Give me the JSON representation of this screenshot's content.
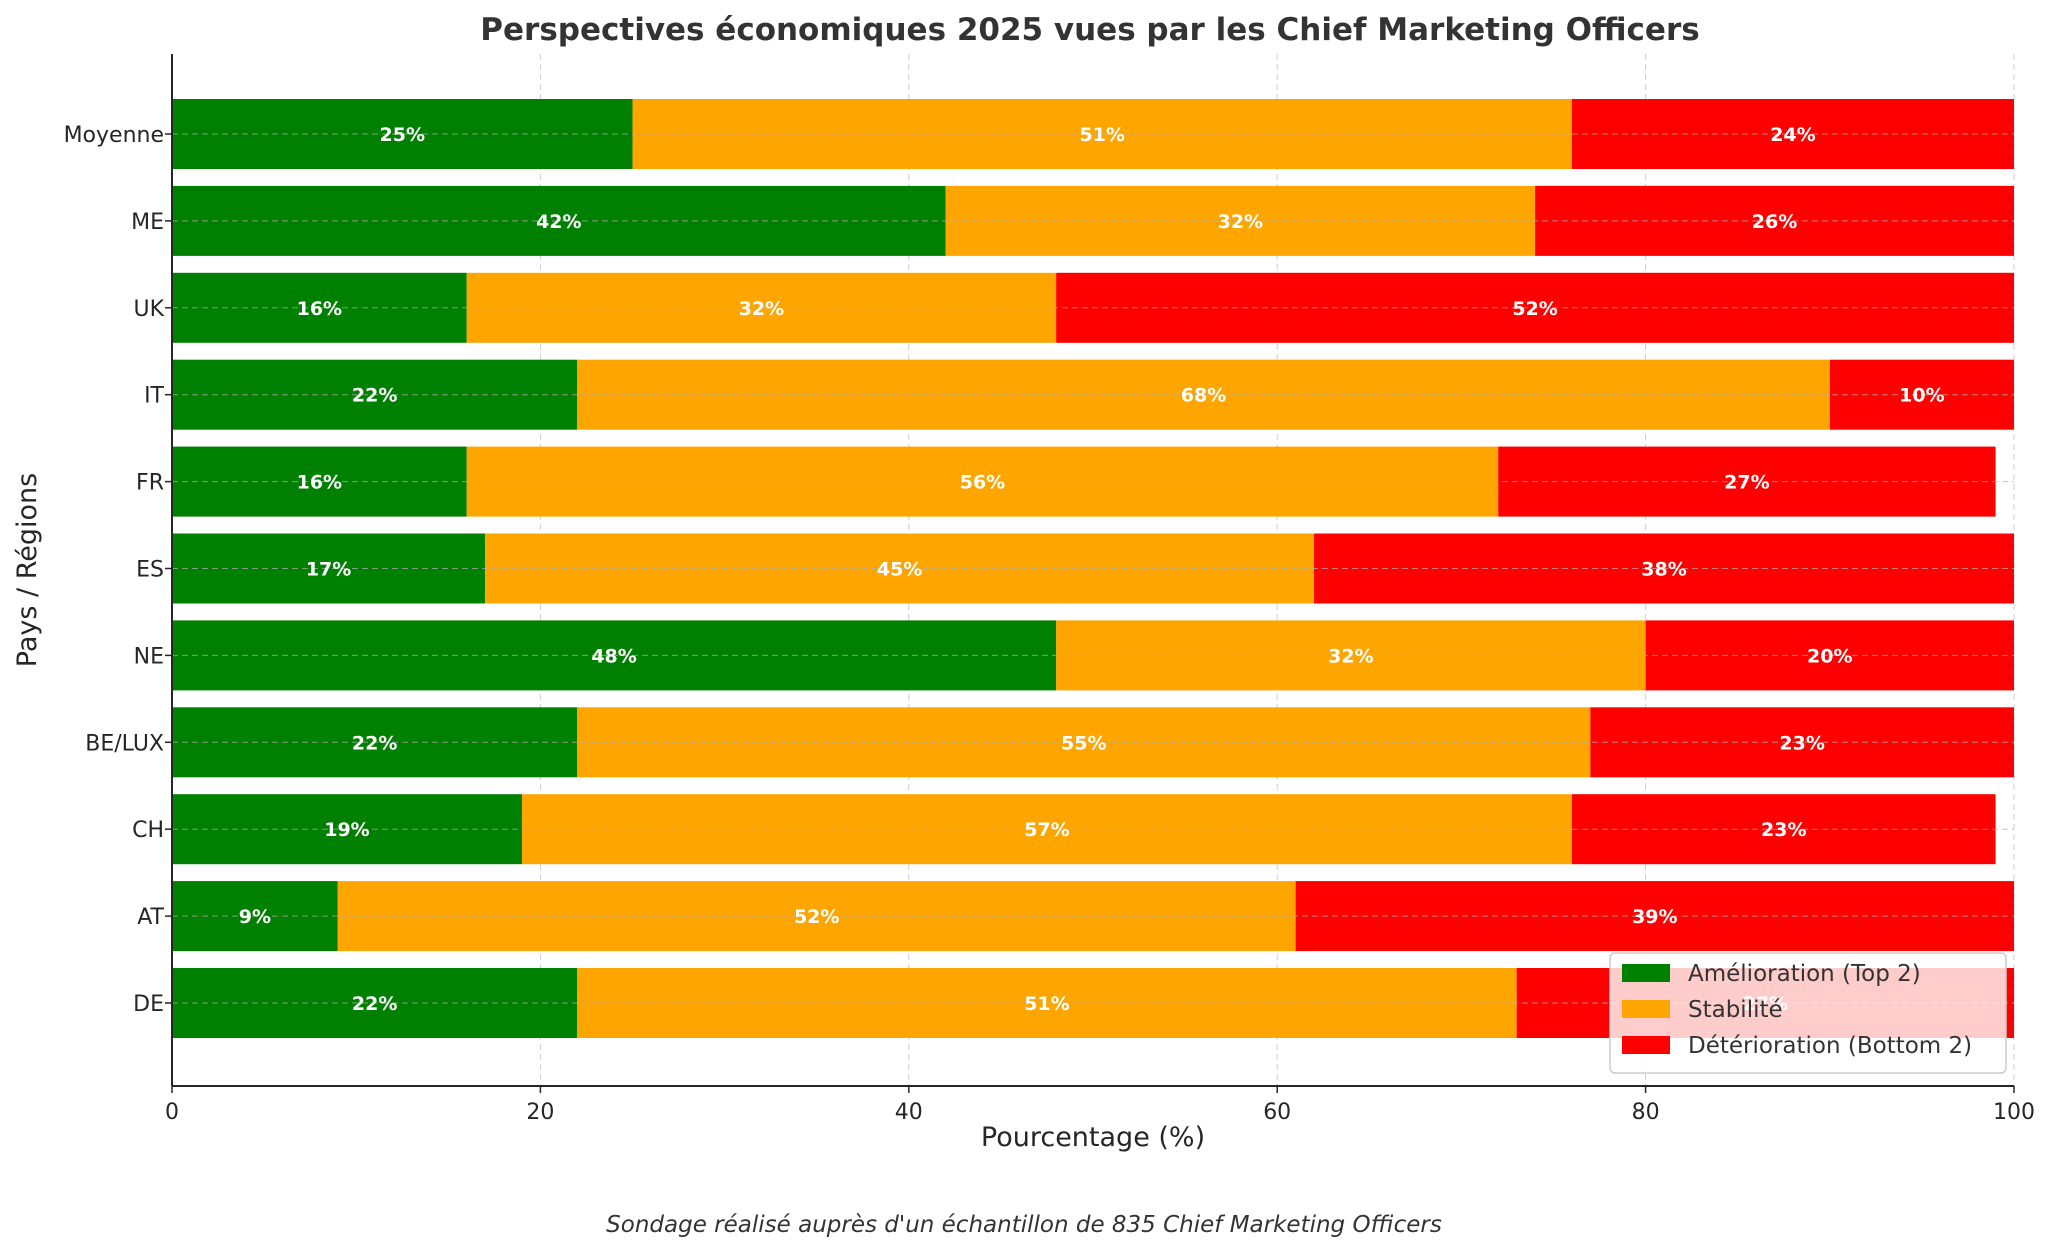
{
  "chart_data": {
    "type": "bar",
    "orientation": "horizontal",
    "stacked": true,
    "title": "Perspectives économiques 2025 vues par les Chief Marketing Officers",
    "xlabel": "Pourcentage (%)",
    "ylabel": "Pays / Régions",
    "xlim": [
      0,
      100
    ],
    "xticks": [
      0,
      20,
      40,
      60,
      80,
      100
    ],
    "grid": true,
    "legend_position": "bottom-right",
    "categories": [
      "Moyenne",
      "ME",
      "UK",
      "IT",
      "FR",
      "ES",
      "NE",
      "BE/LUX",
      "CH",
      "AT",
      "DE"
    ],
    "series": [
      {
        "name": "Amélioration (Top 2)",
        "color": "#008000",
        "values": [
          25,
          42,
          16,
          22,
          16,
          17,
          48,
          22,
          19,
          9,
          22
        ]
      },
      {
        "name": "Stabilité",
        "color": "#FFA500",
        "values": [
          51,
          32,
          32,
          68,
          56,
          45,
          32,
          55,
          57,
          52,
          51
        ]
      },
      {
        "name": "Détérioration (Bottom 2)",
        "color": "#FF0000",
        "values": [
          24,
          26,
          52,
          10,
          27,
          38,
          20,
          23,
          23,
          39,
          27
        ]
      }
    ],
    "value_label_suffix": "%",
    "caption": "Sondage réalisé auprès d'un échantillon de 835 Chief Marketing Officers"
  }
}
